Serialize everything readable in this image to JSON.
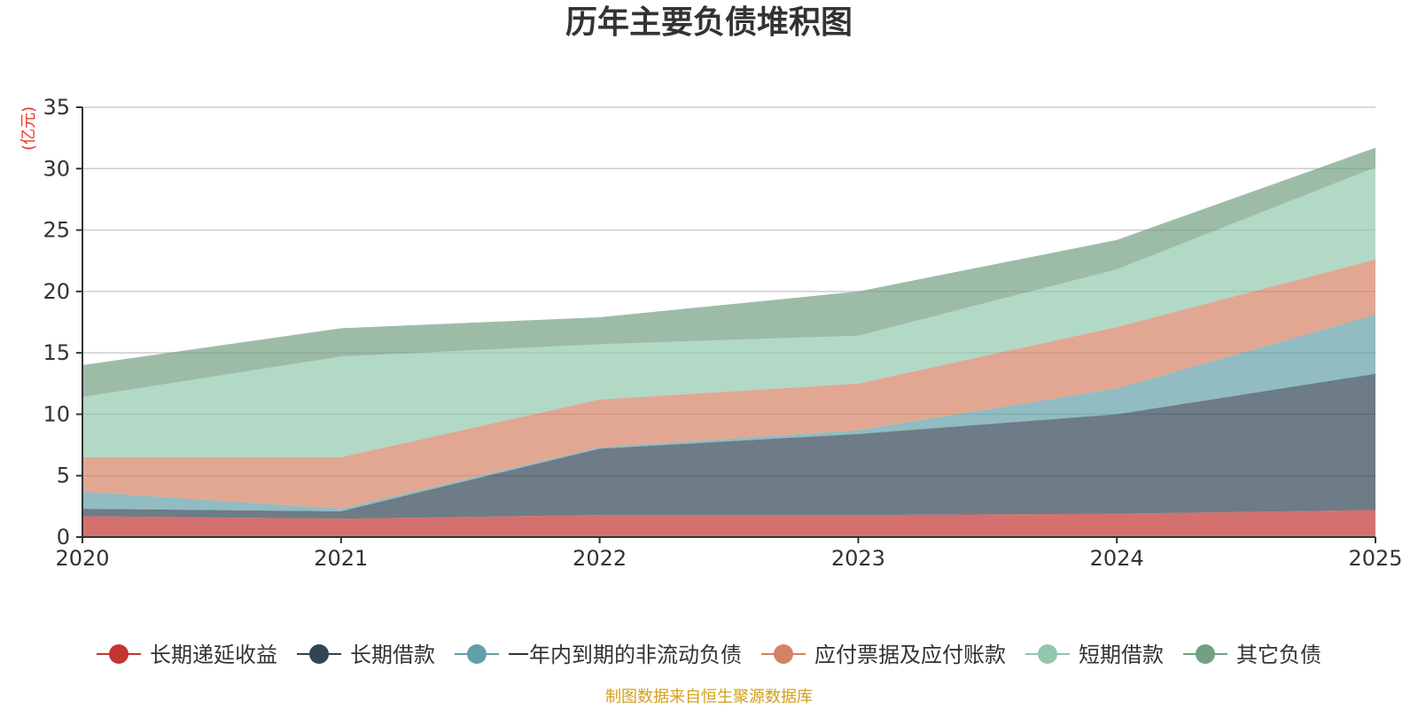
{
  "chart_data": {
    "type": "area",
    "stacked": true,
    "title": "历年主要负债堆积图",
    "ylabel": "(亿元)",
    "xlabel": "",
    "categories": [
      "2020",
      "2021",
      "2022",
      "2023",
      "2024",
      "2025"
    ],
    "ylim": [
      0,
      35
    ],
    "yticks": [
      0,
      5,
      10,
      15,
      20,
      25,
      30,
      35
    ],
    "grid": true,
    "legend_position": "bottom",
    "series": [
      {
        "name": "长期递延收益",
        "color": "#c23531",
        "values": [
          1.7,
          1.5,
          1.8,
          1.8,
          1.9,
          2.2
        ]
      },
      {
        "name": "长期借款",
        "color": "#2f4554",
        "values": [
          0.6,
          0.6,
          5.4,
          6.6,
          8.1,
          11.1
        ]
      },
      {
        "name": "一年内到期的非流动负债",
        "color": "#61a0a8",
        "values": [
          1.4,
          0.2,
          0.1,
          0.3,
          2.1,
          4.8
        ]
      },
      {
        "name": "应付票据及应付账款",
        "color": "#d48265",
        "values": [
          2.8,
          4.2,
          3.9,
          3.8,
          5.0,
          4.5
        ]
      },
      {
        "name": "短期借款",
        "color": "#91c7ae",
        "values": [
          4.9,
          8.2,
          4.5,
          3.9,
          4.7,
          7.5
        ]
      },
      {
        "name": "其它负债",
        "color": "#749f83",
        "values": [
          2.6,
          2.3,
          2.2,
          3.6,
          2.4,
          1.6
        ]
      }
    ],
    "unit_color": "#e83828",
    "source": "制图数据来自恒生聚源数据库",
    "source_color": "#d4a017"
  }
}
